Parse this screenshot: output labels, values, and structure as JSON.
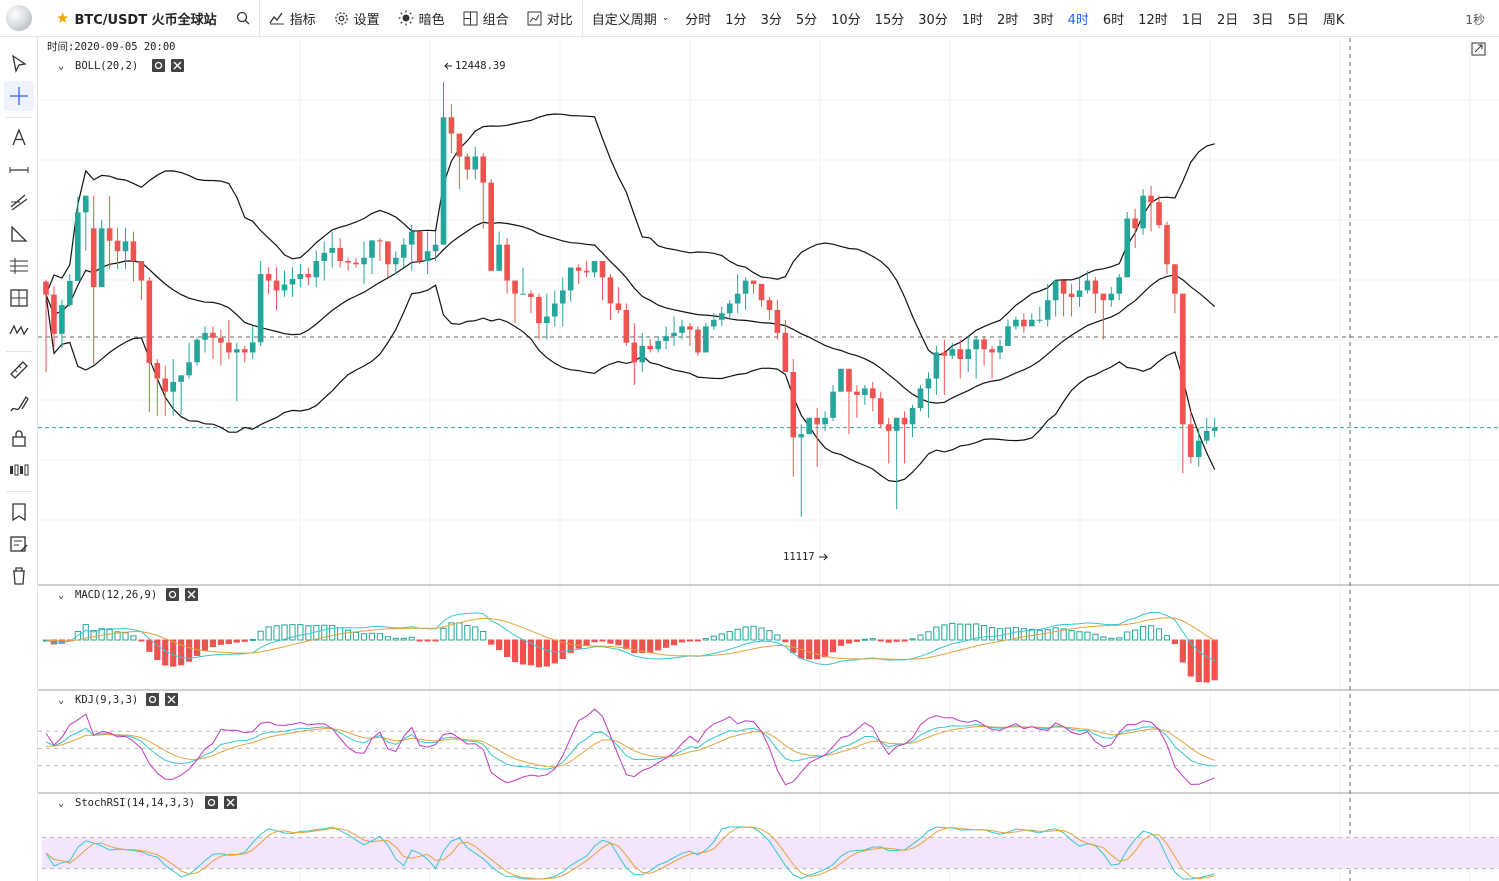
{
  "toolbar": {
    "symbol": "BTC/USDT 火币全球站",
    "buttons": {
      "indicators": "指标",
      "settings": "设置",
      "theme": "暗色",
      "combo": "组合",
      "compare": "对比",
      "custom": "自定义周期"
    },
    "periods": [
      "分时",
      "1分",
      "3分",
      "5分",
      "10分",
      "15分",
      "30分",
      "1时",
      "2时",
      "3时",
      "4时",
      "6时",
      "12时",
      "1日",
      "2日",
      "3日",
      "5日",
      "周K"
    ],
    "active_period": "4时",
    "timer": "1秒"
  },
  "sidebar": {
    "tools": [
      "cursor-icon",
      "crosshair-icon",
      "text-tool-icon",
      "horizontal-line-icon",
      "trend-lines-icon",
      "triangle-icon",
      "parallel-channel-icon",
      "grid-measure-icon",
      "wave-icon",
      "ruler-icon",
      "brush-icon",
      "lock-icon",
      "candle-pattern-icon",
      "bookmark-icon",
      "edit-list-icon",
      "trash-icon"
    ]
  },
  "colors": {
    "up": "#26a69a",
    "down": "#ef5350",
    "line": "#111111",
    "macd_dif": "#36c7d0",
    "macd_dea": "#e6a23c",
    "kdj_k": "#36c7d0",
    "kdj_d": "#e6a23c",
    "kdj_j": "#c039c0",
    "stoch_band": "#f3e5fb"
  },
  "main_panel": {
    "time_label": "时间:2020-09-05 20:00",
    "indicator": "BOLL(20,2)",
    "high_label": "12448.39",
    "low_label": "11117"
  },
  "macd_panel": {
    "label": "MACD(12,26,9)"
  },
  "kdj_panel": {
    "label": "KDJ(9,3,3)"
  },
  "stoch_panel": {
    "label": "StochRSI(14,14,3,3)"
  },
  "chart_data": {
    "type": "candlestick",
    "title": "BTC/USDT 4H",
    "price_range": [
      11000,
      12500
    ],
    "annotations": {
      "high": 12448.39,
      "low": 11117
    },
    "candles": [
      [
        11837,
        11797,
        11843,
        11560
      ],
      [
        11797,
        11677,
        11823,
        11635
      ],
      [
        11677,
        11765,
        11782,
        11633
      ],
      [
        11765,
        11839,
        11860,
        11760
      ],
      [
        11839,
        12049,
        12098,
        11839
      ],
      [
        12049,
        12100,
        12098,
        11931
      ],
      [
        12000,
        11820,
        12100,
        11583
      ],
      [
        11820,
        12000,
        12026,
        11820
      ],
      [
        12000,
        11962,
        12098,
        11875
      ],
      [
        11962,
        11930,
        12002,
        11875
      ],
      [
        11930,
        11960,
        12002,
        11875
      ],
      [
        11960,
        11900,
        11990,
        11837
      ],
      [
        11900,
        11840,
        11890,
        11780
      ],
      [
        11840,
        11588,
        11850,
        11438
      ],
      [
        11588,
        11540,
        11600,
        11426
      ],
      [
        11540,
        11500,
        11580,
        11426
      ],
      [
        11500,
        11530,
        11600,
        11426
      ],
      [
        11530,
        11550,
        11550,
        11430
      ],
      [
        11550,
        11590,
        11650,
        11540
      ],
      [
        11590,
        11659,
        11666,
        11580
      ],
      [
        11659,
        11680,
        11700,
        11620
      ],
      [
        11680,
        11665,
        11700,
        11600
      ],
      [
        11665,
        11650,
        11690,
        11580
      ],
      [
        11650,
        11620,
        11720,
        11600
      ],
      [
        11620,
        11630,
        11650,
        11470
      ],
      [
        11630,
        11620,
        11640,
        11589
      ],
      [
        11620,
        11651,
        11700,
        11600
      ],
      [
        11651,
        11860,
        11900,
        11640
      ],
      [
        11860,
        11840,
        11881,
        11800
      ],
      [
        11840,
        11810,
        11881,
        11750
      ],
      [
        11810,
        11828,
        11870,
        11790
      ],
      [
        11828,
        11845,
        11881,
        11790
      ],
      [
        11845,
        11860,
        11891,
        11820
      ],
      [
        11860,
        11850,
        11880,
        11826
      ],
      [
        11850,
        11900,
        11932,
        11820
      ],
      [
        11900,
        11925,
        11960,
        11840
      ],
      [
        11925,
        11940,
        11990,
        11880
      ],
      [
        11940,
        11900,
        11970,
        11880
      ],
      [
        11900,
        11895,
        11910,
        11870
      ],
      [
        11895,
        11890,
        11910,
        11880
      ],
      [
        11890,
        11910,
        11960,
        11830
      ],
      [
        11910,
        11963,
        11965,
        11860
      ],
      [
        11963,
        11960,
        11970,
        11900
      ],
      [
        11960,
        11890,
        11920,
        11850
      ],
      [
        11890,
        11910,
        11930,
        11860
      ],
      [
        11910,
        11950,
        11970,
        11880
      ],
      [
        11950,
        11990,
        12010,
        11870
      ],
      [
        11990,
        11900,
        11980,
        11890
      ],
      [
        11900,
        11930,
        11990,
        11860
      ],
      [
        11930,
        11950,
        11990,
        11900
      ],
      [
        11950,
        12340,
        12448,
        11950
      ],
      [
        12340,
        12290,
        12380,
        12230
      ],
      [
        12290,
        12220,
        12270,
        12120
      ],
      [
        12220,
        12180,
        12230,
        12150
      ],
      [
        12180,
        12220,
        12250,
        12150
      ],
      [
        12220,
        12140,
        12230,
        12000
      ],
      [
        12140,
        11870,
        12150,
        11880
      ],
      [
        11870,
        11950,
        11990,
        11880
      ],
      [
        11950,
        11840,
        11970,
        11800
      ],
      [
        11840,
        11800,
        11810,
        11710
      ],
      [
        11800,
        11800,
        11880,
        11800
      ],
      [
        11800,
        11790,
        11810,
        11740
      ],
      [
        11790,
        11710,
        11800,
        11660
      ],
      [
        11710,
        11730,
        11800,
        11660
      ],
      [
        11730,
        11770,
        11810,
        11700
      ],
      [
        11770,
        11810,
        11850,
        11700
      ],
      [
        11810,
        11880,
        11880,
        11775
      ],
      [
        11880,
        11870,
        11890,
        11830
      ],
      [
        11870,
        11865,
        11900,
        11850
      ],
      [
        11865,
        11900,
        11900,
        11850
      ],
      [
        11900,
        11850,
        11900,
        11780
      ],
      [
        11850,
        11770,
        11860,
        11720
      ],
      [
        11770,
        11750,
        11820,
        11740
      ],
      [
        11750,
        11650,
        11770,
        11640
      ],
      [
        11650,
        11590,
        11710,
        11520
      ],
      [
        11590,
        11640,
        11680,
        11560
      ],
      [
        11640,
        11630,
        11660,
        11620
      ],
      [
        11630,
        11655,
        11670,
        11620
      ],
      [
        11655,
        11670,
        11700,
        11630
      ],
      [
        11670,
        11680,
        11730,
        11640
      ],
      [
        11680,
        11700,
        11720,
        11660
      ],
      [
        11700,
        11690,
        11710,
        11640
      ],
      [
        11690,
        11620,
        11700,
        11610
      ],
      [
        11620,
        11700,
        11710,
        11670
      ],
      [
        11700,
        11720,
        11740,
        11690
      ],
      [
        11720,
        11740,
        11760,
        11700
      ],
      [
        11740,
        11770,
        11780,
        11720
      ],
      [
        11770,
        11800,
        11860,
        11740
      ],
      [
        11800,
        11840,
        11850,
        11750
      ],
      [
        11840,
        11830,
        11840,
        11800
      ],
      [
        11830,
        11780,
        11830,
        11760
      ],
      [
        11780,
        11750,
        11790,
        11720
      ],
      [
        11750,
        11680,
        11780,
        11660
      ],
      [
        11680,
        11560,
        11720,
        11560
      ],
      [
        11560,
        11360,
        11600,
        11240
      ],
      [
        11360,
        11370,
        11400,
        11117
      ],
      [
        11370,
        11420,
        11420,
        11370
      ],
      [
        11420,
        11400,
        11450,
        11270
      ],
      [
        11400,
        11420,
        11440,
        11380
      ],
      [
        11420,
        11500,
        11520,
        11410
      ],
      [
        11500,
        11570,
        11570,
        11520
      ],
      [
        11570,
        11500,
        11570,
        11370
      ],
      [
        11500,
        11490,
        11520,
        11420
      ],
      [
        11490,
        11510,
        11520,
        11460
      ],
      [
        11510,
        11480,
        11530,
        11440
      ],
      [
        11480,
        11400,
        11500,
        11390
      ],
      [
        11400,
        11380,
        11420,
        11280
      ],
      [
        11380,
        11420,
        11420,
        11140
      ],
      [
        11420,
        11400,
        11440,
        11280
      ],
      [
        11400,
        11450,
        11460,
        11360
      ],
      [
        11450,
        11510,
        11520,
        11440
      ],
      [
        11510,
        11540,
        11560,
        11420
      ],
      [
        11540,
        11620,
        11640,
        11490
      ],
      [
        11620,
        11610,
        11660,
        11490
      ],
      [
        11610,
        11630,
        11650,
        11600
      ],
      [
        11630,
        11600,
        11660,
        11540
      ],
      [
        11600,
        11630,
        11670,
        11560
      ],
      [
        11630,
        11660,
        11670,
        11540
      ],
      [
        11660,
        11630,
        11670,
        11580
      ],
      [
        11630,
        11620,
        11640,
        11540
      ],
      [
        11620,
        11640,
        11660,
        11600
      ],
      [
        11640,
        11700,
        11720,
        11640
      ],
      [
        11700,
        11720,
        11730,
        11690
      ],
      [
        11720,
        11700,
        11740,
        11680
      ],
      [
        11700,
        11720,
        11740,
        11700
      ],
      [
        11720,
        11720,
        11760,
        11710
      ],
      [
        11720,
        11780,
        11830,
        11700
      ],
      [
        11780,
        11840,
        11840,
        11730
      ],
      [
        11840,
        11800,
        11840,
        11730
      ],
      [
        11800,
        11790,
        11830,
        11730
      ],
      [
        11790,
        11810,
        11850,
        11760
      ],
      [
        11810,
        11840,
        11870,
        11800
      ],
      [
        11840,
        11800,
        11850,
        11740
      ],
      [
        11800,
        11780,
        11800,
        11660
      ],
      [
        11780,
        11800,
        11820,
        11760
      ],
      [
        11800,
        11850,
        11860,
        11780
      ],
      [
        11850,
        12030,
        12050,
        11850
      ],
      [
        12030,
        12000,
        12060,
        11940
      ],
      [
        12000,
        12100,
        12120,
        11980
      ],
      [
        12100,
        12080,
        12130,
        11990
      ],
      [
        12080,
        12010,
        12100,
        12000
      ],
      [
        12010,
        11890,
        12020,
        11860
      ],
      [
        11890,
        11800,
        11890,
        11740
      ],
      [
        11800,
        11400,
        11780,
        11250
      ],
      [
        11400,
        11300,
        11440,
        11280
      ],
      [
        11300,
        11350,
        11390,
        11270
      ],
      [
        11350,
        11380,
        11420,
        11340
      ],
      [
        11380,
        11390,
        11420,
        11360
      ]
    ],
    "indicators": {
      "boll": {
        "period": 20,
        "mult": 2
      },
      "macd": {
        "fast": 12,
        "slow": 26,
        "signal": 9
      },
      "kdj": {
        "n": 9,
        "m1": 3,
        "m2": 3
      },
      "stoch_rsi": {
        "rsi": 14,
        "stoch": 14,
        "k": 3,
        "d": 3
      }
    }
  }
}
